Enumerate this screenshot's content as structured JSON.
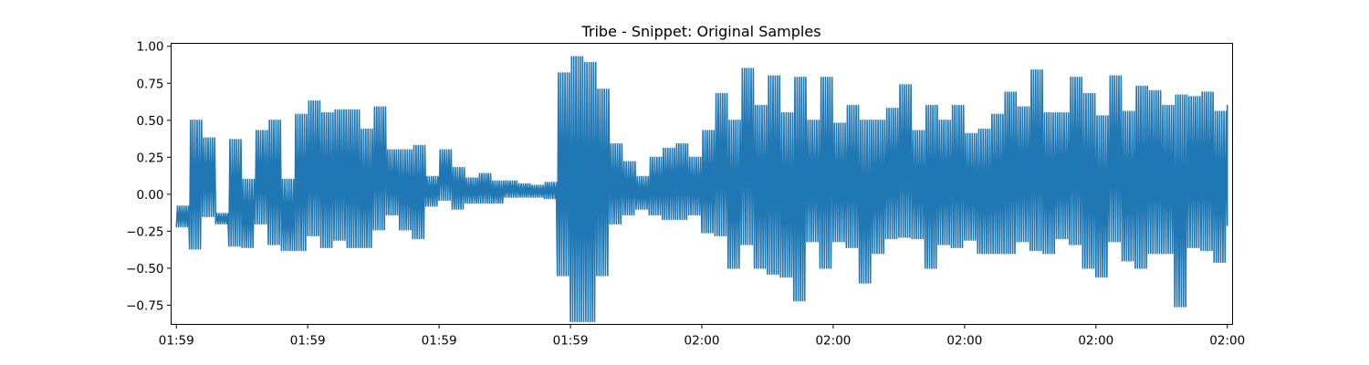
{
  "chart_data": {
    "type": "line",
    "title": "Tribe - Snippet: Original Samples",
    "xlabel": "",
    "ylabel": "",
    "ylim": [
      -0.88,
      1.02
    ],
    "yticks": [
      -0.75,
      -0.5,
      -0.25,
      0.0,
      0.25,
      0.5,
      0.75,
      1.0
    ],
    "ytick_labels": [
      "−0.75",
      "−0.50",
      "−0.25",
      "0.00",
      "0.25",
      "0.50",
      "0.75",
      "1.00"
    ],
    "xlim": [
      -0.04,
      8.04
    ],
    "xticks": [
      0,
      1,
      2,
      3,
      4,
      5,
      6,
      7,
      8
    ],
    "xtick_labels": [
      "01:59",
      "01:59",
      "01:59",
      "01:59",
      "02:00",
      "02:00",
      "02:00",
      "02:00",
      "02:00"
    ],
    "grid": false,
    "legend": "none",
    "series": [
      {
        "color": "#1f77b4",
        "x": [
          0.0,
          0.1,
          0.2,
          0.3,
          0.4,
          0.5,
          0.6,
          0.7,
          0.8,
          0.9,
          1.0,
          1.1,
          1.2,
          1.3,
          1.4,
          1.5,
          1.6,
          1.7,
          1.8,
          1.9,
          2.0,
          2.1,
          2.2,
          2.3,
          2.4,
          2.5,
          2.6,
          2.7,
          2.8,
          2.9,
          3.0,
          3.1,
          3.2,
          3.3,
          3.4,
          3.5,
          3.6,
          3.7,
          3.8,
          3.9,
          4.0,
          4.1,
          4.2,
          4.3,
          4.4,
          4.5,
          4.6,
          4.7,
          4.8,
          4.9,
          5.0,
          5.1,
          5.2,
          5.3,
          5.4,
          5.5,
          5.6,
          5.7,
          5.8,
          5.9,
          6.0,
          6.1,
          6.2,
          6.3,
          6.4,
          6.5,
          6.6,
          6.7,
          6.8,
          6.9,
          7.0,
          7.1,
          7.2,
          7.3,
          7.4,
          7.5,
          7.6,
          7.7,
          7.8,
          7.9,
          8.0
        ],
        "min": [
          -0.22,
          -0.37,
          -0.15,
          -0.2,
          -0.35,
          -0.36,
          -0.2,
          -0.34,
          -0.38,
          -0.38,
          -0.28,
          -0.36,
          -0.31,
          -0.36,
          -0.36,
          -0.24,
          -0.14,
          -0.24,
          -0.3,
          -0.08,
          -0.04,
          -0.1,
          -0.06,
          -0.06,
          -0.06,
          -0.02,
          -0.02,
          -0.02,
          -0.03,
          -0.55,
          -0.86,
          -0.86,
          -0.55,
          -0.2,
          -0.14,
          -0.1,
          -0.14,
          -0.17,
          -0.17,
          -0.14,
          -0.26,
          -0.28,
          -0.5,
          -0.34,
          -0.5,
          -0.54,
          -0.56,
          -0.72,
          -0.32,
          -0.5,
          -0.32,
          -0.36,
          -0.6,
          -0.4,
          -0.3,
          -0.29,
          -0.3,
          -0.5,
          -0.34,
          -0.36,
          -0.31,
          -0.4,
          -0.4,
          -0.4,
          -0.32,
          -0.38,
          -0.4,
          -0.3,
          -0.34,
          -0.5,
          -0.56,
          -0.32,
          -0.45,
          -0.5,
          -0.4,
          -0.4,
          -0.76,
          -0.36,
          -0.38,
          -0.46,
          -0.21
        ],
        "max": [
          -0.08,
          0.5,
          0.38,
          -0.13,
          0.37,
          0.1,
          0.43,
          0.5,
          0.1,
          0.54,
          0.63,
          0.55,
          0.57,
          0.57,
          0.44,
          0.59,
          0.3,
          0.3,
          0.33,
          0.12,
          0.3,
          0.18,
          0.11,
          0.14,
          0.09,
          0.09,
          0.07,
          0.06,
          0.08,
          0.82,
          0.93,
          0.89,
          0.71,
          0.34,
          0.22,
          0.12,
          0.25,
          0.31,
          0.34,
          0.25,
          0.43,
          0.68,
          0.5,
          0.85,
          0.6,
          0.8,
          0.55,
          0.79,
          0.5,
          0.79,
          0.48,
          0.6,
          0.5,
          0.5,
          0.58,
          0.74,
          0.43,
          0.6,
          0.5,
          0.6,
          0.41,
          0.44,
          0.54,
          0.69,
          0.59,
          0.84,
          0.55,
          0.55,
          0.79,
          0.68,
          0.53,
          0.8,
          0.56,
          0.73,
          0.7,
          0.6,
          0.67,
          0.66,
          0.69,
          0.56,
          0.6
        ],
        "end": [
          -0.12,
          0.45,
          0.2,
          -0.15,
          0.2,
          0.05,
          0.3,
          0.4,
          0.0,
          0.4,
          0.5,
          0.45,
          0.45,
          0.4,
          0.35,
          0.45,
          0.2,
          0.2,
          0.2,
          0.05,
          0.15,
          0.1,
          0.05,
          0.08,
          0.04,
          0.04,
          0.03,
          0.02,
          0.04,
          0.3,
          0.5,
          0.4,
          0.3,
          0.1,
          0.05,
          0.0,
          0.1,
          0.1,
          0.1,
          0.05,
          0.2,
          0.4,
          0.2,
          0.5,
          0.3,
          0.4,
          0.2,
          0.4,
          0.2,
          0.4,
          0.2,
          0.3,
          0.2,
          0.2,
          0.3,
          0.4,
          0.2,
          0.3,
          0.2,
          0.3,
          0.2,
          0.2,
          0.3,
          0.4,
          0.3,
          0.5,
          0.3,
          0.3,
          0.4,
          0.3,
          0.2,
          0.4,
          0.3,
          0.4,
          0.4,
          0.3,
          0.3,
          0.3,
          0.4,
          0.3,
          -0.1
        ]
      }
    ]
  }
}
